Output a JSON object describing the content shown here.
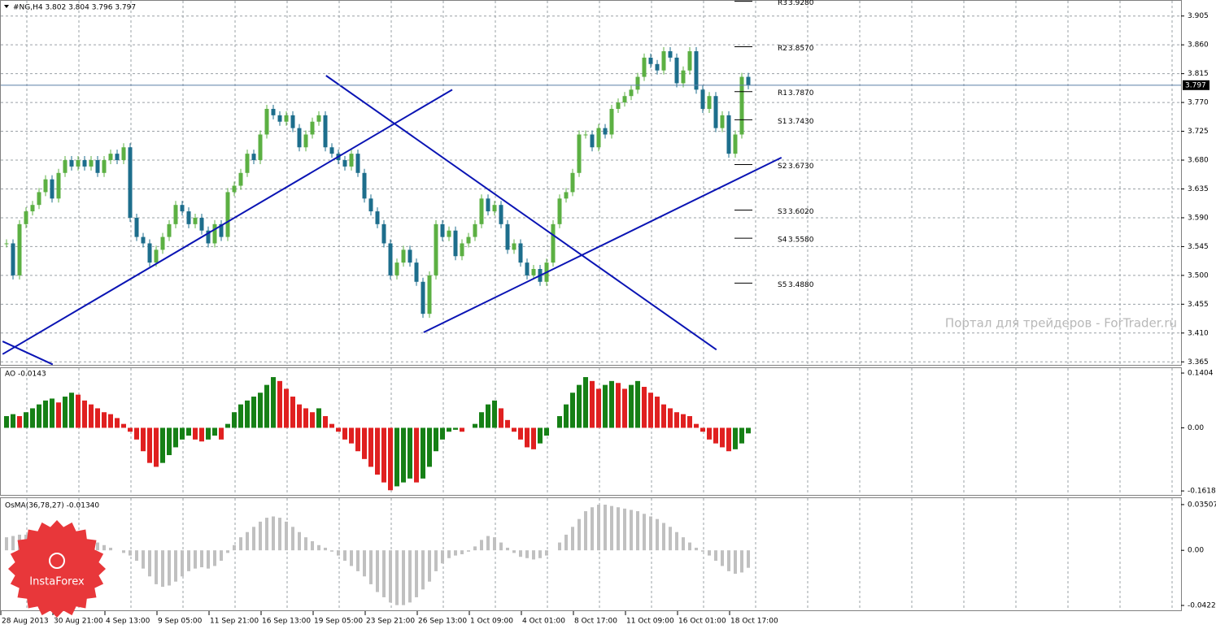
{
  "chart_data": {
    "type": "candlestick",
    "title": "#NG,H4 3.802 3.804 3.796 3.797",
    "watermark": "Портал для трейдеров - ForTrader.ru",
    "logo": "InstaForex",
    "ylim": [
      3.359,
      3.93
    ],
    "yticks": [
      3.905,
      {
        "value": 3.86,
        "label": "3.860"
      },
      3.815,
      {
        "value": 3.77,
        "label": "3.770"
      },
      3.725,
      {
        "value": 3.68,
        "label": "3.680"
      },
      3.635,
      {
        "value": 3.59,
        "label": "3.590"
      },
      3.545,
      {
        "value": 3.5,
        "label": "3.500"
      },
      3.455,
      {
        "value": 3.41,
        "label": "3.410"
      },
      3.365
    ],
    "grid": true,
    "current_price": {
      "value": 3.797,
      "label": "3.797"
    },
    "xlabels": [
      "28 Aug 2013",
      "30 Aug 21:00",
      "4 Sep 13:00",
      "9 Sep 05:00",
      "11 Sep 21:00",
      "16 Sep 13:00",
      "19 Sep 05:00",
      "23 Sep 21:00",
      "26 Sep 13:00",
      "1 Oct 09:00",
      "4 Oct 01:00",
      "8 Oct 17:00",
      "11 Oct 09:00",
      "16 Oct 01:00",
      "18 Oct 17:00"
    ],
    "up_color": "#5cb043",
    "down_color": "#1d6e8c",
    "close": [
      3.55,
      3.5,
      3.58,
      3.6,
      3.61,
      3.63,
      3.65,
      3.62,
      3.66,
      3.68,
      3.67,
      3.68,
      3.67,
      3.68,
      3.66,
      3.68,
      3.69,
      3.68,
      3.7,
      3.59,
      3.56,
      3.55,
      3.52,
      3.54,
      3.56,
      3.58,
      3.61,
      3.6,
      3.58,
      3.59,
      3.57,
      3.55,
      3.58,
      3.56,
      3.63,
      3.64,
      3.66,
      3.69,
      3.68,
      3.72,
      3.76,
      3.75,
      3.74,
      3.75,
      3.73,
      3.7,
      3.72,
      3.74,
      3.75,
      3.7,
      3.69,
      3.68,
      3.67,
      3.69,
      3.66,
      3.62,
      3.6,
      3.58,
      3.55,
      3.5,
      3.52,
      3.54,
      3.52,
      3.49,
      3.44,
      3.5,
      3.58,
      3.56,
      3.57,
      3.53,
      3.55,
      3.56,
      3.58,
      3.62,
      3.6,
      3.61,
      3.58,
      3.54,
      3.55,
      3.52,
      3.5,
      3.51,
      3.49,
      3.52,
      3.58,
      3.62,
      3.63,
      3.66,
      3.72,
      3.72,
      3.7,
      3.73,
      3.72,
      3.76,
      3.77,
      3.78,
      3.79,
      3.81,
      3.84,
      3.83,
      3.82,
      3.85,
      3.84,
      3.8,
      3.82,
      3.85,
      3.79,
      3.76,
      3.78,
      3.73,
      3.75,
      3.69,
      3.72,
      3.81,
      3.797
    ],
    "pivots": [
      {
        "name": "R3",
        "value": 3.928,
        "label": "3.9280"
      },
      {
        "name": "R2",
        "value": 3.857,
        "label": "3.8570"
      },
      {
        "name": "R1",
        "value": 3.787,
        "label": "3.7870"
      },
      {
        "name": "S1",
        "value": 3.743,
        "label": "3.7430"
      },
      {
        "name": "S2",
        "value": 3.673,
        "label": "3.6730"
      },
      {
        "name": "S3",
        "value": 3.602,
        "label": "3.6020"
      },
      {
        "name": "S4",
        "value": 3.558,
        "label": "3.5580"
      },
      {
        "name": "S5",
        "value": 3.488,
        "label": "3.4880"
      }
    ],
    "trendlines": [
      [
        -0.6,
        3.377,
        68.5,
        3.79
      ],
      [
        49.1,
        3.812,
        109.1,
        3.384
      ],
      [
        64.1,
        3.411,
        119.1,
        3.684
      ],
      [
        -0.6,
        3.397,
        7.1,
        3.361
      ]
    ],
    "trendline_color": "#0a14b4",
    "ao": {
      "label": "AO -0.0143",
      "ylim": [
        -0.172,
        0.153
      ],
      "yticks": [
        0.1404,
        {
          "value": 0,
          "label": "0.00"
        },
        -0.1618
      ],
      "up_color": "#168016",
      "down_color": "#e02020",
      "values": [
        0.03,
        0.035,
        0.03,
        0.04,
        0.05,
        0.06,
        0.07,
        0.075,
        0.065,
        0.08,
        0.09,
        0.085,
        0.07,
        0.06,
        0.05,
        0.04,
        0.035,
        0.025,
        0.01,
        -0.01,
        -0.03,
        -0.06,
        -0.09,
        -0.1,
        -0.09,
        -0.07,
        -0.05,
        -0.03,
        -0.02,
        -0.03,
        -0.035,
        -0.03,
        -0.02,
        -0.03,
        0.01,
        0.04,
        0.06,
        0.07,
        0.08,
        0.09,
        0.11,
        0.13,
        0.12,
        0.1,
        0.08,
        0.06,
        0.05,
        0.04,
        0.05,
        0.03,
        0.01,
        -0.01,
        -0.03,
        -0.04,
        -0.06,
        -0.08,
        -0.1,
        -0.12,
        -0.14,
        -0.16,
        -0.15,
        -0.14,
        -0.13,
        -0.14,
        -0.13,
        -0.1,
        -0.06,
        -0.03,
        -0.01,
        -0.005,
        -0.01,
        0.0,
        0.01,
        0.04,
        0.06,
        0.07,
        0.05,
        0.02,
        -0.01,
        -0.03,
        -0.05,
        -0.055,
        -0.04,
        -0.02,
        0.0,
        0.03,
        0.06,
        0.09,
        0.11,
        0.13,
        0.12,
        0.1,
        0.11,
        0.12,
        0.115,
        0.1,
        0.11,
        0.12,
        0.105,
        0.09,
        0.08,
        0.06,
        0.05,
        0.04,
        0.035,
        0.03,
        0.01,
        -0.01,
        -0.03,
        -0.04,
        -0.05,
        -0.06,
        -0.055,
        -0.04,
        -0.0143
      ]
    },
    "osma": {
      "label": "OsMA(36,78,27) -0.01340",
      "ylim": [
        -0.046,
        0.04
      ],
      "yticks": [
        0.03507,
        {
          "value": 0,
          "label": "0.00"
        },
        -0.04226
      ],
      "color": "#c0c0c0",
      "values": [
        0.01,
        0.011,
        0.012,
        0.012,
        0.013,
        0.013,
        0.014,
        0.014,
        0.013,
        0.012,
        0.012,
        0.011,
        0.01,
        0.008,
        0.006,
        0.004,
        0.002,
        0.0,
        -0.002,
        -0.004,
        -0.008,
        -0.014,
        -0.02,
        -0.026,
        -0.028,
        -0.027,
        -0.024,
        -0.02,
        -0.016,
        -0.014,
        -0.013,
        -0.014,
        -0.012,
        -0.008,
        -0.002,
        0.004,
        0.01,
        0.014,
        0.018,
        0.022,
        0.025,
        0.026,
        0.025,
        0.022,
        0.018,
        0.014,
        0.01,
        0.007,
        0.004,
        0.002,
        -0.001,
        -0.004,
        -0.008,
        -0.012,
        -0.016,
        -0.02,
        -0.026,
        -0.032,
        -0.036,
        -0.04,
        -0.042,
        -0.042,
        -0.04,
        -0.036,
        -0.03,
        -0.024,
        -0.016,
        -0.01,
        -0.006,
        -0.004,
        -0.003,
        -0.001,
        0.003,
        0.008,
        0.011,
        0.01,
        0.006,
        0.002,
        -0.002,
        -0.005,
        -0.006,
        -0.007,
        -0.006,
        -0.004,
        0.0,
        0.006,
        0.012,
        0.018,
        0.024,
        0.03,
        0.033,
        0.035,
        0.035,
        0.034,
        0.033,
        0.032,
        0.031,
        0.03,
        0.028,
        0.026,
        0.024,
        0.021,
        0.018,
        0.014,
        0.01,
        0.006,
        0.002,
        -0.001,
        -0.004,
        -0.008,
        -0.012,
        -0.016,
        -0.018,
        -0.017,
        -0.0134
      ]
    }
  }
}
